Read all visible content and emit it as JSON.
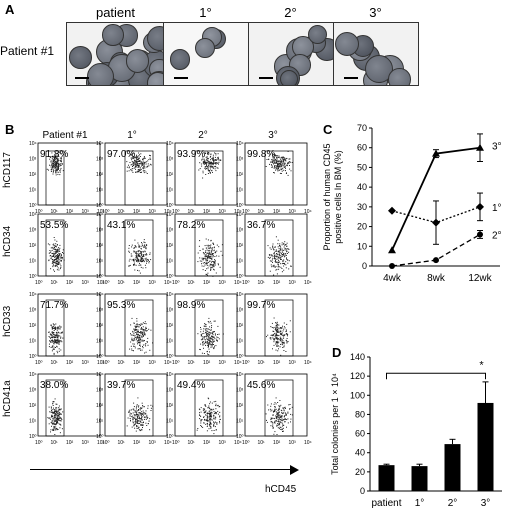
{
  "panel_a": {
    "letter": "A",
    "headers": [
      "patient",
      "1°",
      "2°",
      "3°"
    ],
    "row_label": "Patient #1"
  },
  "panel_b": {
    "letter": "B",
    "column_headers": [
      "Patient #1",
      "1°",
      "2°",
      "3°"
    ],
    "row_labels": [
      "hCD117",
      "hCD34",
      "hCD33",
      "hCD41a"
    ],
    "percentages": [
      [
        "91.8%",
        "97.0%",
        "93.9%",
        "99.8%"
      ],
      [
        "53.5%",
        "43.1%",
        "78.2%",
        "36.7%"
      ],
      [
        "71.7%",
        "95.3%",
        "98.9%",
        "99.7%"
      ],
      [
        "38.0%",
        "39.7%",
        "49.4%",
        "45.6%"
      ]
    ],
    "x_axis_label": "hCD45",
    "tick_labels": [
      "10⁰",
      "10¹",
      "10²",
      "10³",
      "10⁴"
    ]
  },
  "chart_data": [
    {
      "panel": "C",
      "type": "line",
      "x": [
        "4wk",
        "8wk",
        "12wk"
      ],
      "ylabel": "Proportion of human CD45 positive cells In BM (%)",
      "ylim": [
        0,
        70
      ],
      "yticks": [
        0,
        10,
        20,
        30,
        40,
        50,
        60,
        70
      ],
      "series": [
        {
          "name": "3°",
          "values": [
            8,
            57,
            60
          ],
          "errors": [
            0,
            2,
            7
          ],
          "marker": "triangle",
          "line": "solid"
        },
        {
          "name": "1°",
          "values": [
            28,
            22,
            30
          ],
          "errors": [
            0,
            11,
            7
          ],
          "marker": "diamond",
          "line": "dotted"
        },
        {
          "name": "2°",
          "values": [
            0,
            3,
            16
          ],
          "errors": [
            0,
            0,
            2
          ],
          "marker": "circle",
          "line": "dashed"
        }
      ]
    },
    {
      "panel": "D",
      "type": "bar",
      "categories": [
        "patient",
        "1°",
        "2°",
        "3°"
      ],
      "values": [
        27,
        26,
        49,
        92
      ],
      "errors": [
        1,
        2,
        5,
        22
      ],
      "ylabel": "Total colonies per 1 × 10⁴",
      "ylim": [
        0,
        140
      ],
      "yticks": [
        0,
        20,
        40,
        60,
        80,
        100,
        120,
        140
      ],
      "annotation": "*"
    }
  ],
  "colors": {
    "ink": "#000000",
    "micro_bg": "#f2f2f2",
    "cell": "#5a5f66",
    "dot": "#222222"
  }
}
